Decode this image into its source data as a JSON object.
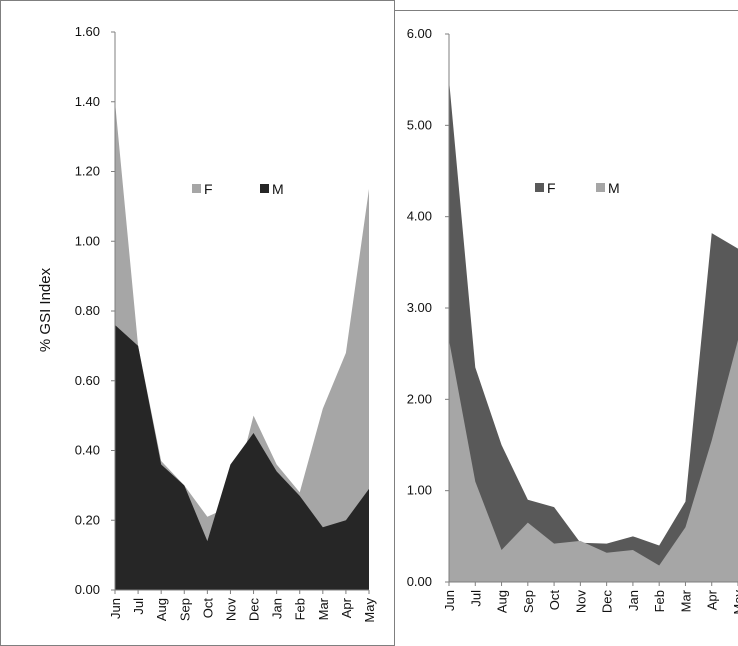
{
  "colors": {
    "light_gray": "#a6a6a6",
    "dark_gray": "#595959",
    "near_black": "#262626",
    "frame": "#7f7f7f"
  },
  "chart_data": [
    {
      "type": "area",
      "categories": [
        "Jun",
        "Jul",
        "Aug",
        "Sep",
        "Oct",
        "Nov",
        "Dec",
        "Jan",
        "Feb",
        "Mar",
        "Apr",
        "May"
      ],
      "ylabel": "% GSI Index",
      "ylim": [
        0,
        1.6
      ],
      "yticks": [
        "0.00",
        "0.20",
        "0.40",
        "0.60",
        "0.80",
        "1.00",
        "1.20",
        "1.40",
        "1.60"
      ],
      "legend_position": "top-center",
      "series": [
        {
          "name": "F",
          "color": "#a6a6a6",
          "values": [
            1.4,
            0.7,
            0.37,
            0.3,
            0.21,
            0.24,
            0.5,
            0.36,
            0.28,
            0.52,
            0.68,
            1.15
          ]
        },
        {
          "name": "M",
          "color": "#262626",
          "values": [
            0.76,
            0.7,
            0.36,
            0.3,
            0.14,
            0.36,
            0.45,
            0.34,
            0.27,
            0.18,
            0.2,
            0.29
          ]
        }
      ]
    },
    {
      "type": "area",
      "categories": [
        "Jun",
        "Jul",
        "Aug",
        "Sep",
        "Oct",
        "Nov",
        "Dec",
        "Jan",
        "Feb",
        "Mar",
        "Apr",
        "May"
      ],
      "ylabel": "",
      "ylim": [
        0,
        6
      ],
      "yticks": [
        "0.00",
        "1.00",
        "2.00",
        "3.00",
        "4.00",
        "5.00",
        "6.00"
      ],
      "legend_position": "top-center",
      "series": [
        {
          "name": "F",
          "color": "#595959",
          "values": [
            5.5,
            2.35,
            1.5,
            0.9,
            0.82,
            0.43,
            0.42,
            0.5,
            0.4,
            0.88,
            3.82,
            3.65
          ]
        },
        {
          "name": "M",
          "color": "#a6a6a6",
          "values": [
            2.65,
            1.1,
            0.35,
            0.65,
            0.42,
            0.45,
            0.32,
            0.35,
            0.18,
            0.6,
            1.55,
            2.65
          ]
        }
      ]
    }
  ]
}
